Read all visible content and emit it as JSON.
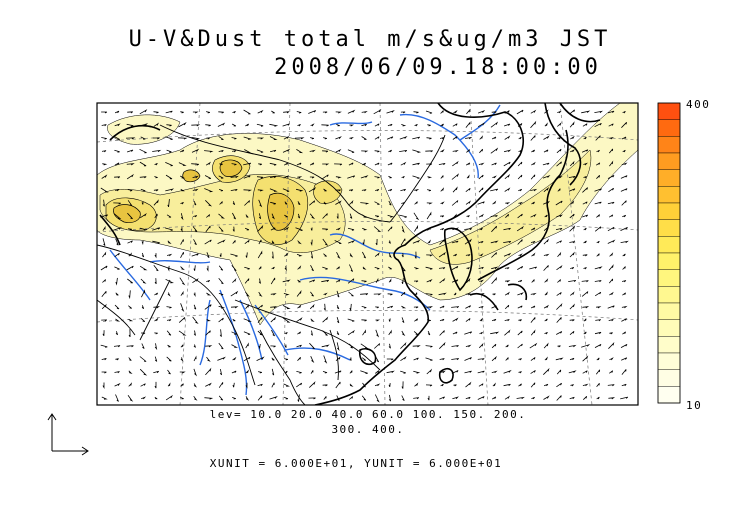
{
  "figure": {
    "title_line1": "U-V&Dust total m/s&ug/m3 JST",
    "title_line2": "2008/06/09.18:00:00",
    "levels_line1": "lev= 10.0 20.0 40.0 60.0 100. 150. 200.",
    "levels_line2": "300. 400.",
    "units_line": "XUNIT = 6.000E+01, YUNIT = 6.000E+01"
  },
  "colorbar": {
    "max_label": "400",
    "min_label": "10",
    "colors": [
      "#ff5010",
      "#ff6a10",
      "#ff8418",
      "#ff9c20",
      "#ffae28",
      "#ffc030",
      "#ffd038",
      "#ffde48",
      "#ffea58",
      "#fff26a",
      "#fff67e",
      "#fff890",
      "#fffaa4",
      "#fffcb8",
      "#fffdca",
      "#fffed8",
      "#fffee4",
      "#fffff0"
    ]
  },
  "colors": {
    "dust_low": "#fcf8c4",
    "dust_mid": "#f8ee9c",
    "dust_high": "#f4e070",
    "dust_peak": "#e8c440",
    "rivers": "#2a6ae0",
    "coast": "#000000"
  }
}
